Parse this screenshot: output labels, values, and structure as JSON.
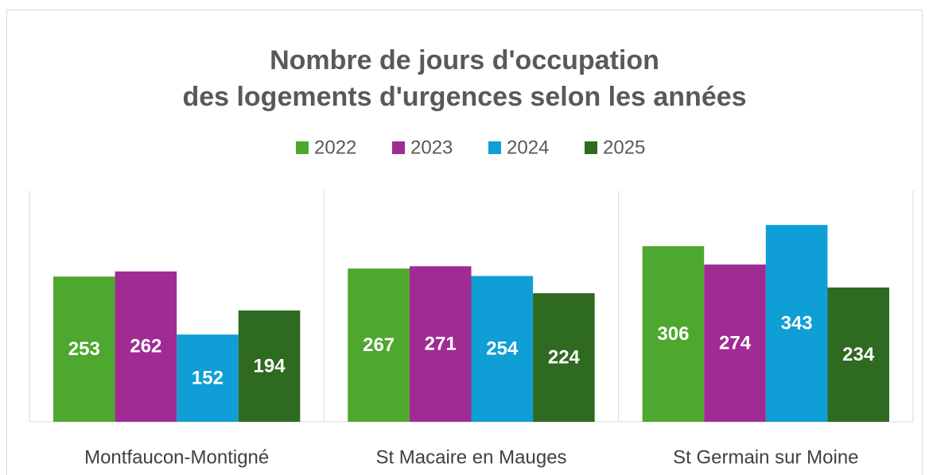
{
  "chart_data": {
    "type": "bar",
    "title": [
      "Nombre de jours d'occupation",
      "des logements d'urgences selon les années"
    ],
    "categories": [
      "Montfaucon-Montigné",
      "St Macaire en Mauges",
      "St Germain sur Moine"
    ],
    "series": [
      {
        "name": "2022",
        "color": "#4ea72e",
        "values": [
          253,
          267,
          306
        ]
      },
      {
        "name": "2023",
        "color": "#a02b93",
        "values": [
          262,
          271,
          274
        ]
      },
      {
        "name": "2024",
        "color": "#0f9ed5",
        "values": [
          152,
          254,
          343
        ]
      },
      {
        "name": "2025",
        "color": "#2e6a1f",
        "values": [
          194,
          224,
          234
        ]
      }
    ],
    "ylim": [
      0,
      400
    ],
    "legend": "top"
  }
}
